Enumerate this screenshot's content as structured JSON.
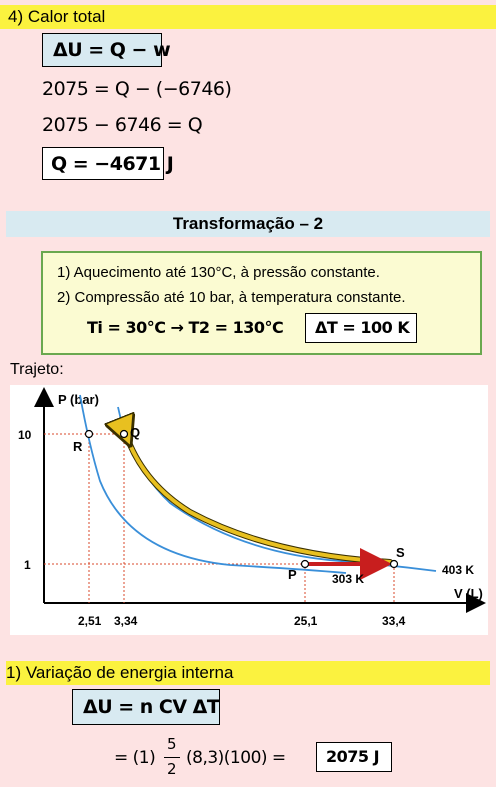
{
  "section4": {
    "title": "4)   Calor total",
    "eq1": "ΔU = Q − w",
    "eq2": "2075 = Q − (−6746)",
    "eq3": "2075 − 6746 = Q",
    "eq4": "Q = −4671 J"
  },
  "transformation": {
    "title": "Transformação – 2",
    "step1": "1) Aquecimento até 130°C, à pressão constante.",
    "step2": "2)   Compressão até 10 bar, à temperatura constante.",
    "temps": "Ti = 30°C → T2 = 130°C",
    "delta_t": "ΔT = 100 K"
  },
  "trajeto_label": "Trajeto:",
  "chart_data": {
    "type": "diagram",
    "ylabel": "P (bar)",
    "xlabel": "V (L)",
    "x_ticks": [
      "2,51",
      "3,34",
      "25,1",
      "33,4"
    ],
    "y_ticks": [
      "10",
      "1"
    ],
    "points": [
      {
        "label": "R",
        "x": "2,51",
        "y": "10"
      },
      {
        "label": "Q",
        "x": "3,34",
        "y": "10"
      },
      {
        "label": "P",
        "x": "25,1",
        "y": "1"
      },
      {
        "label": "S",
        "x": "33,4",
        "y": "1"
      }
    ],
    "isotherm_labels": [
      "303 K",
      "403 K"
    ],
    "colors": {
      "isotherm": "#3a8fd9",
      "path_isobaric": "#c81e1e",
      "path_isothermal": "#e8c020",
      "guide": "#d9482b"
    }
  },
  "section1": {
    "title": "1) Variação de energia interna",
    "eq1": "ΔU = n CV ΔT",
    "eq2_prefix": "= (1)",
    "frac_num": "5",
    "frac_den": "2",
    "eq2_rest": "(8,3)(100) =",
    "result": "2075 J"
  }
}
